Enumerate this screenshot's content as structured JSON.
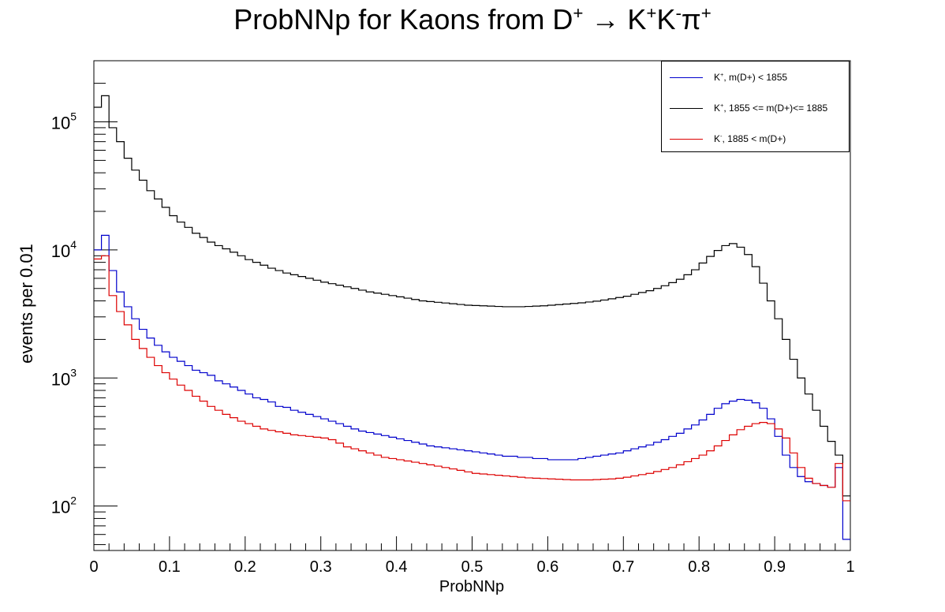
{
  "chart_data": {
    "type": "line",
    "title": {
      "prefix": "ProbNNp for Kaons from D",
      "sup1": "+",
      "arrow": " → K",
      "sup2": "+",
      "mid": "K",
      "sup3": "-",
      "tail": "π",
      "sup4": "+"
    },
    "xlabel": "ProbNNp",
    "ylabel": "events per 0.01",
    "xlim": [
      0,
      1
    ],
    "ylim": [
      45,
      300000
    ],
    "yscale": "log",
    "x_ticks": [
      "0",
      "0.1",
      "0.2",
      "0.3",
      "0.4",
      "0.5",
      "0.6",
      "0.7",
      "0.8",
      "0.9",
      "1"
    ],
    "y_ticks": [
      {
        "value": 100,
        "base": "10",
        "exp": "2"
      },
      {
        "value": 1000,
        "base": "10",
        "exp": "3"
      },
      {
        "value": 10000,
        "base": "10",
        "exp": "4"
      },
      {
        "value": 100000,
        "base": "10",
        "exp": "5"
      }
    ],
    "legend_position": "top-right",
    "bin_width": 0.01,
    "series": [
      {
        "name": "K+, m(D+) < 1855",
        "legend_parts": {
          "a": "K",
          "sup": "+",
          "b": ", m(D+) < 1855"
        },
        "color": "#0000cc",
        "values": [
          10000,
          13000,
          6900,
          4700,
          3600,
          2900,
          2400,
          2050,
          1800,
          1600,
          1450,
          1350,
          1250,
          1150,
          1100,
          1050,
          950,
          900,
          850,
          800,
          750,
          700,
          680,
          650,
          600,
          590,
          560,
          540,
          520,
          500,
          480,
          460,
          440,
          420,
          400,
          385,
          375,
          365,
          355,
          345,
          335,
          325,
          315,
          305,
          295,
          290,
          285,
          280,
          275,
          270,
          265,
          260,
          255,
          250,
          245,
          245,
          240,
          240,
          235,
          235,
          230,
          230,
          230,
          230,
          235,
          240,
          245,
          250,
          255,
          260,
          270,
          280,
          290,
          300,
          315,
          330,
          350,
          370,
          400,
          430,
          470,
          520,
          580,
          630,
          660,
          680,
          670,
          640,
          580,
          480,
          350,
          250,
          200,
          170,
          155,
          150,
          145,
          140,
          200,
          55
        ]
      },
      {
        "name": "K+, 1855 <= m(D+)<= 1885",
        "legend_parts": {
          "a": "K",
          "sup": "+",
          "b": ", 1855 <= m(D+)<= 1885"
        },
        "color": "#000000",
        "values": [
          130000,
          160000,
          90000,
          70000,
          52000,
          42000,
          35000,
          29000,
          25000,
          21500,
          18500,
          16500,
          15000,
          13500,
          12500,
          11500,
          10800,
          10200,
          9600,
          9000,
          8400,
          8000,
          7600,
          7200,
          6900,
          6600,
          6400,
          6200,
          6000,
          5800,
          5600,
          5450,
          5300,
          5150,
          5000,
          4850,
          4700,
          4600,
          4500,
          4400,
          4300,
          4200,
          4100,
          4000,
          3950,
          3900,
          3850,
          3800,
          3750,
          3700,
          3680,
          3660,
          3640,
          3620,
          3600,
          3600,
          3600,
          3620,
          3640,
          3660,
          3700,
          3740,
          3780,
          3820,
          3860,
          3920,
          3980,
          4060,
          4150,
          4250,
          4350,
          4500,
          4650,
          4800,
          5000,
          5250,
          5550,
          5900,
          6400,
          7000,
          7900,
          8900,
          9900,
          10800,
          11200,
          10500,
          9200,
          7400,
          5500,
          4000,
          2900,
          2000,
          1400,
          1000,
          750,
          560,
          420,
          320,
          250,
          120
        ]
      },
      {
        "name": "K-, 1885 < m(D+)",
        "legend_parts": {
          "a": "K",
          "sup": "-",
          "b": ",  1885 < m(D+)"
        },
        "color": "#dd0000",
        "values": [
          8500,
          9000,
          4400,
          3300,
          2600,
          2000,
          1700,
          1450,
          1250,
          1100,
          980,
          880,
          800,
          720,
          660,
          600,
          560,
          520,
          490,
          460,
          440,
          420,
          400,
          390,
          380,
          370,
          360,
          355,
          350,
          345,
          340,
          330,
          310,
          290,
          280,
          270,
          260,
          250,
          240,
          235,
          230,
          225,
          220,
          215,
          210,
          205,
          200,
          195,
          190,
          185,
          180,
          178,
          176,
          174,
          172,
          170,
          168,
          166,
          165,
          164,
          163,
          162,
          161,
          160,
          160,
          160,
          161,
          162,
          163,
          165,
          168,
          172,
          176,
          180,
          186,
          193,
          200,
          210,
          222,
          235,
          250,
          270,
          295,
          325,
          360,
          395,
          420,
          440,
          450,
          440,
          400,
          340,
          260,
          200,
          165,
          150,
          145,
          140,
          215,
          110
        ]
      }
    ]
  }
}
